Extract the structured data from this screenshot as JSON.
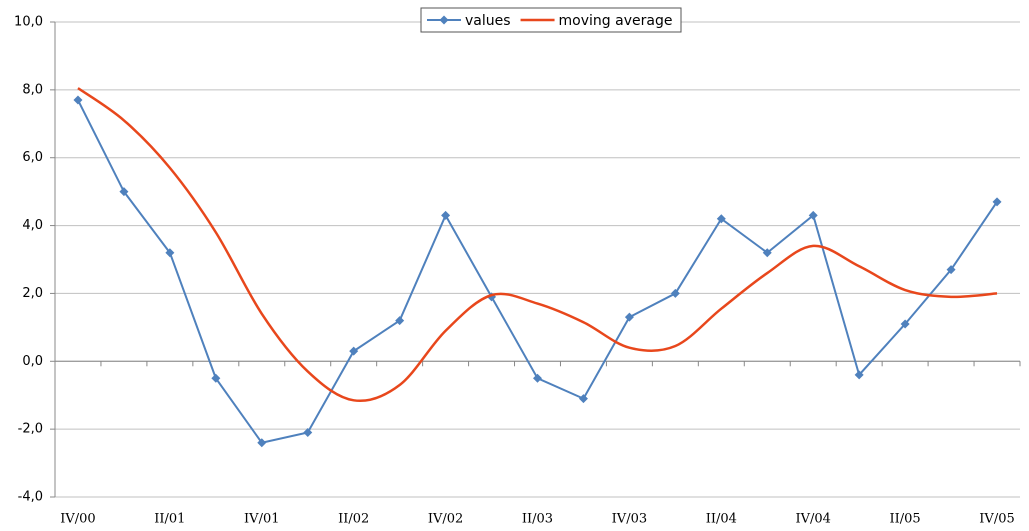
{
  "chart_data": {
    "type": "line",
    "categories": [
      "IV/00",
      null,
      "II/01",
      null,
      "IV/01",
      null,
      "II/02",
      null,
      "IV/02",
      null,
      "II/03",
      null,
      "IV/03",
      null,
      "II/04",
      null,
      "IV/04",
      null,
      "II/05",
      null,
      "IV/05"
    ],
    "series": [
      {
        "name": "values",
        "color": "#4f81bd",
        "marker": "diamond",
        "smooth": false,
        "values": [
          7.7,
          5.0,
          3.2,
          -0.5,
          -2.4,
          -2.1,
          0.3,
          1.2,
          4.3,
          1.9,
          -0.5,
          -1.1,
          1.3,
          2.0,
          4.2,
          3.2,
          4.3,
          -0.4,
          1.1,
          2.7,
          4.7
        ]
      },
      {
        "name": "moving average",
        "color": "#e8471c",
        "marker": "none",
        "smooth": true,
        "values": [
          8.05,
          7.1,
          5.7,
          3.8,
          1.4,
          -0.3,
          -1.15,
          -0.7,
          0.9,
          1.95,
          1.7,
          1.15,
          0.4,
          0.45,
          1.55,
          2.6,
          3.4,
          2.8,
          2.1,
          1.9,
          2.0
        ]
      }
    ],
    "ylim": [
      -4,
      10
    ],
    "yticks": [
      {
        "value": -4,
        "label": "-4,0"
      },
      {
        "value": -2,
        "label": "-2,0"
      },
      {
        "value": 0,
        "label": "0,0"
      },
      {
        "value": 2,
        "label": "2,0"
      },
      {
        "value": 4,
        "label": "4,0"
      },
      {
        "value": 6,
        "label": "6,0"
      },
      {
        "value": 8,
        "label": "8,0"
      },
      {
        "value": 10,
        "label": "10,0"
      }
    ],
    "grid": true,
    "legend": "top"
  }
}
